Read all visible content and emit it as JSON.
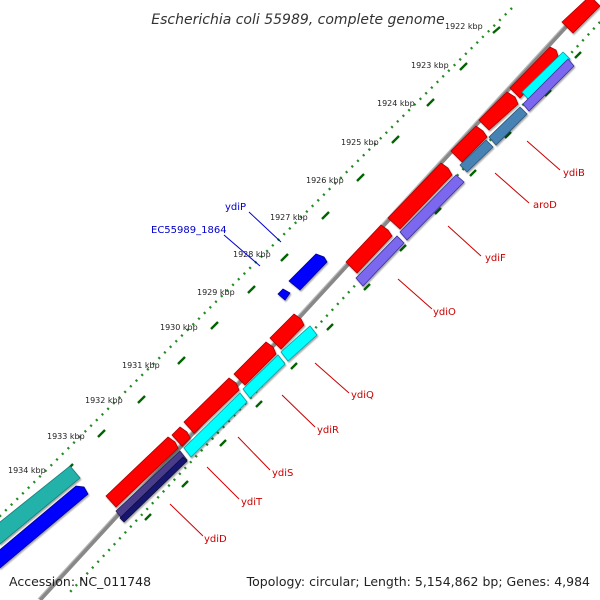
{
  "title": "Escherichia coli 55989, complete genome",
  "footer": {
    "accession": "Accession: NC_011748",
    "summary": "Topology: circular; Length: 5,154,862 bp; Genes: 4,984"
  },
  "ticks": [
    "1922 kbp",
    "1923 kbp",
    "1924 kbp",
    "1925 kbp",
    "1926 kbp",
    "1927 kbp",
    "1928 kbp",
    "1929 kbp",
    "1930 kbp",
    "1931 kbp",
    "1932 kbp",
    "1933 kbp",
    "1934 kbp"
  ],
  "gene_labels": {
    "ydiP": "ydiP",
    "EC55989_1864": "EC55989_1864",
    "ydiB": "ydiB",
    "aroD": "aroD",
    "ydiF": "ydiF",
    "ydiO": "ydiO",
    "ydiQ": "ydiQ",
    "ydiR": "ydiR",
    "ydiS": "ydiS",
    "ydiT": "ydiT",
    "ydiD": "ydiD"
  },
  "colors": {
    "cds_forward": "#ff0000",
    "cds_reverse": "#0000ff",
    "cyan_feature": "#00ffff",
    "purple_feature": "#7b68ee",
    "steel_feature": "#4682b4",
    "navy_feature": "#191970",
    "teal_feature": "#20b2aa",
    "backbone": "#888888",
    "tick_dots": "#228b22",
    "tick_dash": "#006400",
    "label_red": "#cc0000",
    "label_blue": "#0000cc"
  }
}
